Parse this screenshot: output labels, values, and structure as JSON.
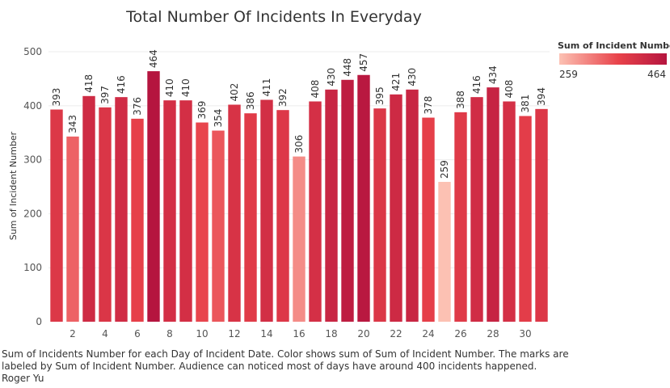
{
  "chart_data": {
    "type": "bar",
    "title": "Total Number Of Incidents In Everyday",
    "xlabel": "",
    "ylabel": "Sum of Incident Number",
    "categories": [
      1,
      2,
      3,
      4,
      5,
      6,
      7,
      8,
      9,
      10,
      11,
      12,
      13,
      14,
      15,
      16,
      17,
      18,
      19,
      20,
      21,
      22,
      23,
      24,
      25,
      26,
      27,
      28,
      29,
      30,
      31
    ],
    "x_tick_labels": [
      "2",
      "4",
      "6",
      "8",
      "10",
      "12",
      "14",
      "16",
      "18",
      "20",
      "22",
      "24",
      "26",
      "28",
      "30"
    ],
    "values": [
      393,
      343,
      418,
      397,
      416,
      376,
      464,
      410,
      410,
      369,
      354,
      402,
      386,
      411,
      392,
      306,
      408,
      430,
      448,
      457,
      395,
      421,
      430,
      378,
      259,
      388,
      416,
      434,
      408,
      381,
      394
    ],
    "ylim": [
      0,
      530
    ],
    "y_ticks": [
      0,
      100,
      200,
      300,
      400,
      500
    ],
    "grid": true,
    "legend": {
      "title": "Sum of Incident Number",
      "min_label": "259",
      "max_label": "464",
      "min": 259,
      "max": 464,
      "position": "top-right"
    },
    "colors": {
      "low": "#fcc1b3",
      "mid": "#e8424a",
      "high": "#b5153f"
    }
  },
  "caption": {
    "line1": "Sum of Incidents Number for each Day of Incident Date.  Color shows sum of Sum of Incident Number.  The marks are",
    "line2": "labeled by Sum of Incident Number. Audience can noticed most of days have around 400 incidents happened.",
    "line3": "Roger Yu"
  }
}
